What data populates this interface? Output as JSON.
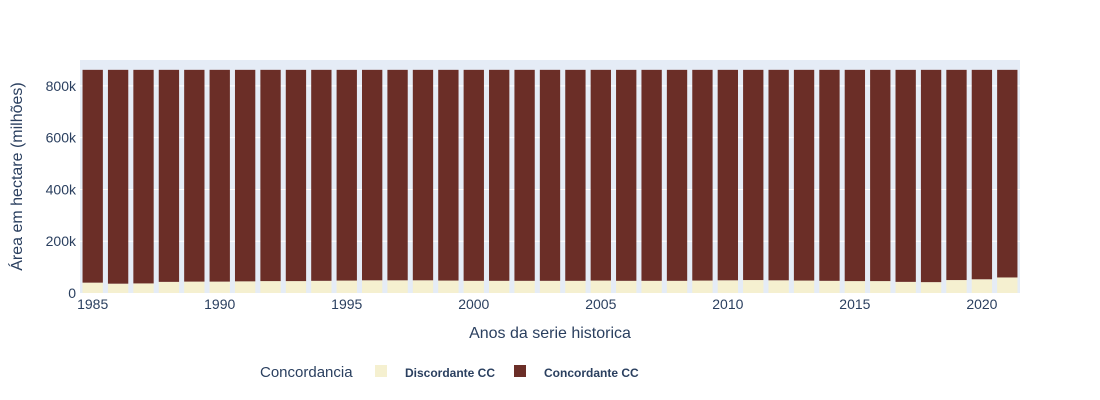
{
  "chart_data": {
    "type": "bar",
    "stacked": true,
    "title": "",
    "xlabel": "Anos da serie historica",
    "ylabel": "Área em hectare (milhões)",
    "ylim": [
      0,
      900000
    ],
    "y_ticks": [
      0,
      200000,
      400000,
      600000,
      800000
    ],
    "y_tick_labels": [
      "0",
      "200k",
      "400k",
      "600k",
      "800k"
    ],
    "x_ticks": [
      1985,
      1990,
      1995,
      2000,
      2005,
      2010,
      2015,
      2020
    ],
    "x_tick_labels": [
      "1985",
      "1990",
      "1995",
      "2000",
      "2005",
      "2010",
      "2015",
      "2020"
    ],
    "x": [
      1985,
      1986,
      1987,
      1988,
      1989,
      1990,
      1991,
      1992,
      1993,
      1994,
      1995,
      1996,
      1997,
      1998,
      1999,
      2000,
      2001,
      2002,
      2003,
      2004,
      2005,
      2006,
      2007,
      2008,
      2009,
      2010,
      2011,
      2012,
      2013,
      2014,
      2015,
      2016,
      2017,
      2018,
      2019,
      2020,
      2021
    ],
    "series": [
      {
        "name": "Discordante CC",
        "color": "#f5f0d0",
        "values": [
          40000,
          36000,
          37000,
          43000,
          44000,
          44000,
          45000,
          46000,
          46000,
          47000,
          48000,
          49000,
          49000,
          49000,
          48000,
          47000,
          47000,
          47000,
          47000,
          47000,
          48000,
          47000,
          47000,
          47000,
          48000,
          49000,
          50000,
          49000,
          48000,
          47000,
          46000,
          46000,
          43000,
          42000,
          50000,
          53000,
          60000
        ]
      },
      {
        "name": "Concordante CC",
        "color": "#6b2e27",
        "values": [
          822000,
          826000,
          825000,
          819000,
          818000,
          818000,
          817000,
          816000,
          816000,
          815000,
          814000,
          813000,
          813000,
          813000,
          814000,
          815000,
          815000,
          815000,
          815000,
          815000,
          814000,
          815000,
          815000,
          815000,
          814000,
          813000,
          812000,
          813000,
          814000,
          815000,
          816000,
          816000,
          819000,
          820000,
          812000,
          809000,
          802000
        ]
      }
    ],
    "legend": {
      "title": "Concordancia",
      "position": "bottom",
      "items": [
        "Discordante CC",
        "Concordante CC"
      ]
    },
    "plot_background": "#e5ecf6",
    "grid": true
  }
}
